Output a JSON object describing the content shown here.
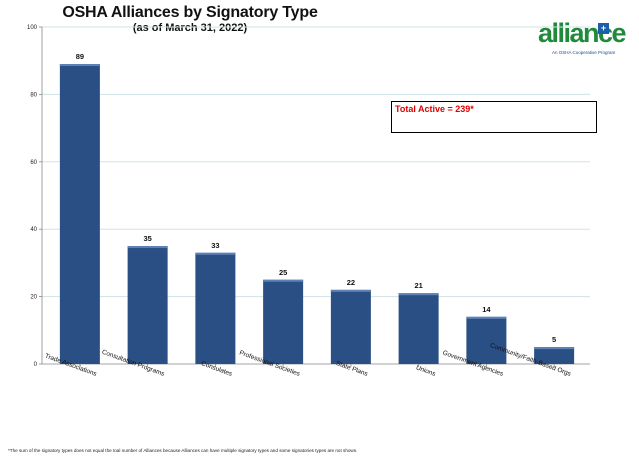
{
  "chart_data": {
    "type": "bar",
    "title": "OSHA Alliances by Signatory Type",
    "subtitle": "(as of March 31, 2022)",
    "categories": [
      "Trade Associations",
      "Consultation Programs",
      "Consulates",
      "Professional Societies",
      "State Plans",
      "Unions",
      "Government Agencies",
      "Community/Faith-Based Orgs"
    ],
    "values": [
      89,
      35,
      33,
      25,
      22,
      21,
      14,
      5
    ],
    "ylim": [
      0,
      100
    ],
    "yticks": [
      0,
      20,
      40,
      60,
      80,
      100
    ],
    "xlabel": "",
    "ylabel": "",
    "grid": true,
    "bar_color": "#2a4f85",
    "annotation": "Total Active = 239*"
  },
  "logo": {
    "text": "alliance",
    "badge": "+",
    "tagline": "An OSHA Cooperative Program",
    "color": "#1f8a3c"
  },
  "footnote": "*The sum of the signatory types does not equal the toal number of Alliances because Alliances can have multiple signatory types and some signatories types are not shown."
}
